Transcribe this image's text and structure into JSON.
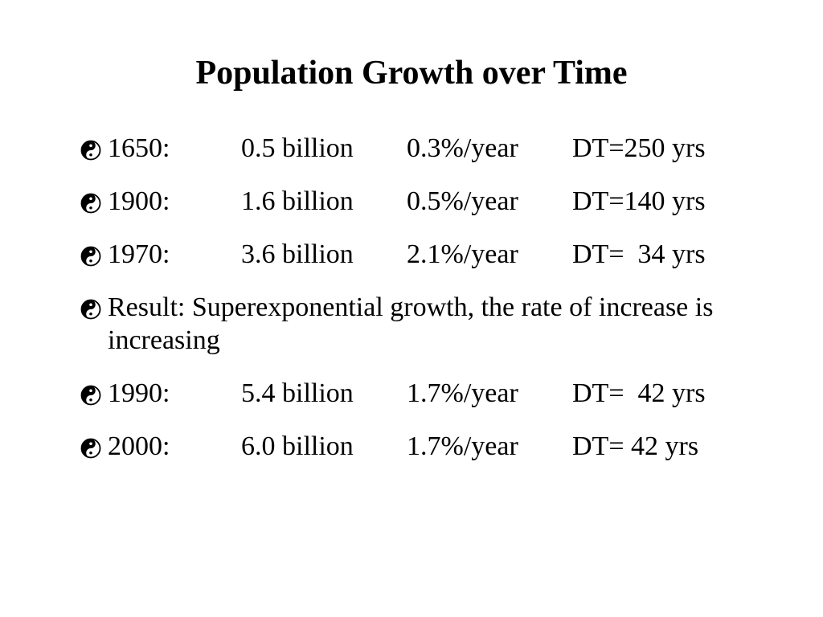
{
  "slide": {
    "title": "Population Growth over Time",
    "bullet_icon": "yin-yang-icon",
    "bullets": [
      {
        "year": "1650:",
        "population": "0.5 billion",
        "rate": "0.3%/year",
        "doubling": "DT=250 yrs"
      },
      {
        "year": "1900:",
        "population": "1.6 billion",
        "rate": "0.5%/year",
        "doubling": "DT=140 yrs"
      },
      {
        "year": "1970:",
        "population": "3.6 billion",
        "rate": "2.1%/year",
        "doubling": "DT=  34 yrs"
      },
      {
        "text": "Result: Superexponential growth, the rate of increase is increasing"
      },
      {
        "year": "1990:",
        "population": "5.4 billion",
        "rate": "1.7%/year",
        "doubling": "DT=  42 yrs"
      },
      {
        "year": "2000:",
        "population": "6.0 billion",
        "rate": "1.7%/year",
        "doubling": "DT= 42 yrs"
      }
    ]
  }
}
